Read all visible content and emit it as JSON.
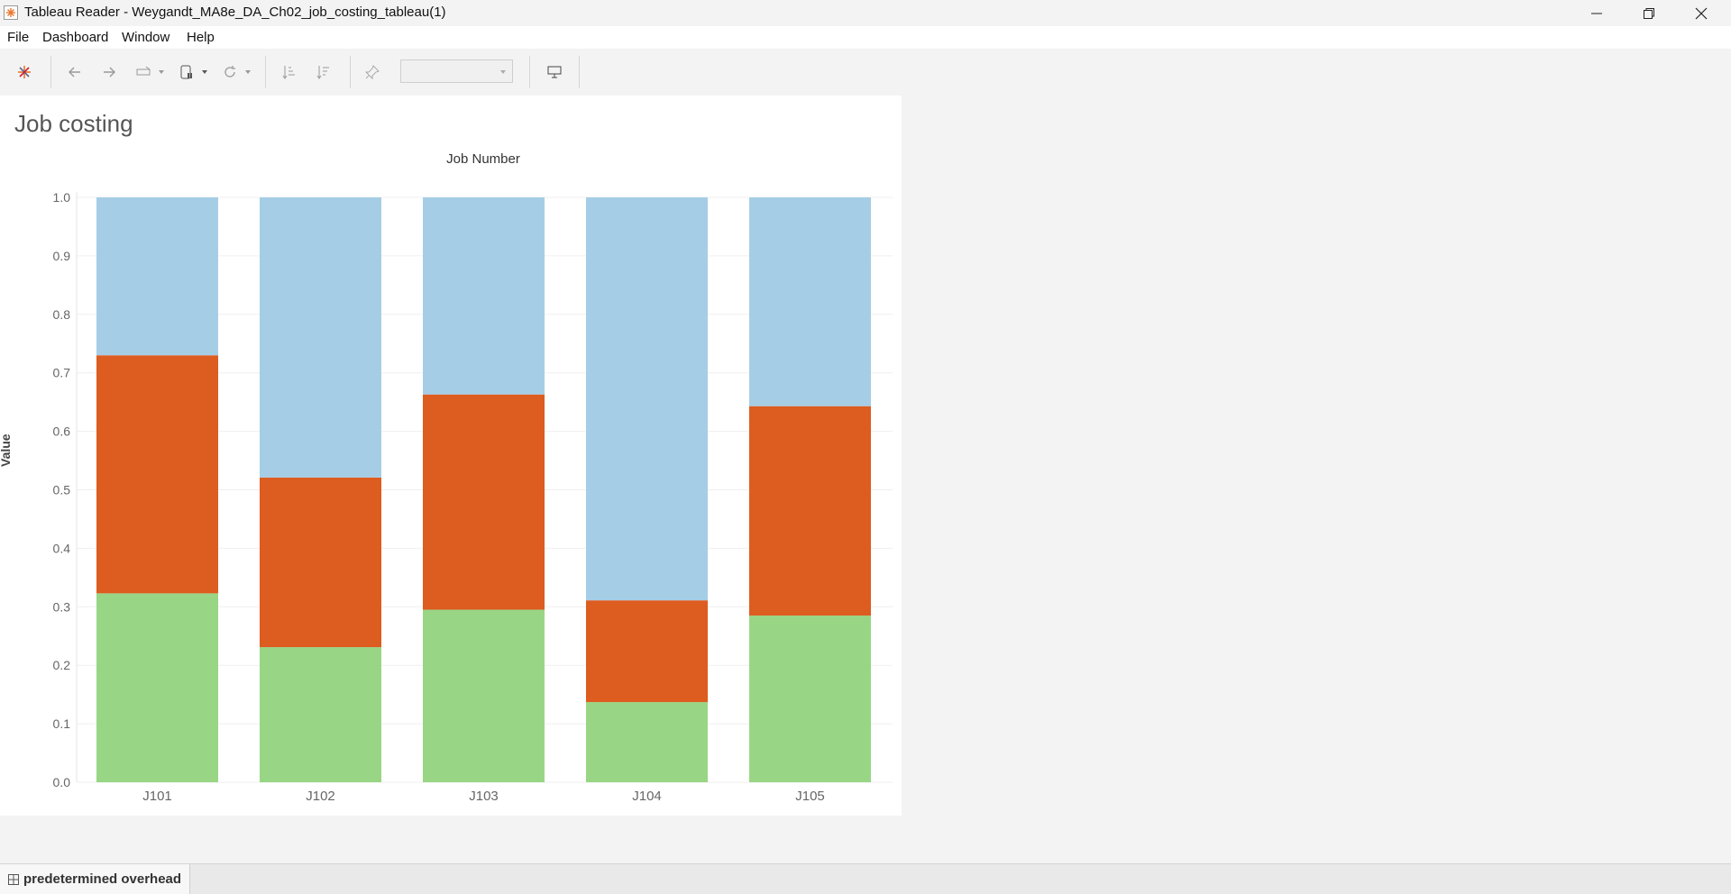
{
  "window": {
    "title": "Tableau Reader - Weygandt_MA8e_DA_Ch02_job_costing_tableau(1)"
  },
  "menu": {
    "items": [
      "File",
      "Dashboard",
      "Window",
      "Help"
    ]
  },
  "toolbar": {
    "icons": [
      "tableau-logo-icon",
      "back-icon",
      "forward-icon",
      "redo-icon",
      "pause-updates-icon",
      "refresh-icon",
      "sort-ascending-icon",
      "sort-descending-icon",
      "pin-icon",
      "presentation-mode-icon"
    ],
    "dropdown_value": ""
  },
  "dashboard": {
    "title": "Job costing"
  },
  "chart_data": {
    "type": "bar",
    "stacked": true,
    "column_header": "Job Number",
    "ylabel": "Value",
    "ylim": [
      0,
      1.0
    ],
    "yticks": [
      "0.0",
      "0.1",
      "0.2",
      "0.3",
      "0.4",
      "0.5",
      "0.6",
      "0.7",
      "0.8",
      "0.9",
      "1.0"
    ],
    "categories": [
      "J101",
      "J102",
      "J103",
      "J104",
      "J105"
    ],
    "grid": true,
    "series": [
      {
        "color": "#98d686",
        "values": [
          0.323,
          0.231,
          0.295,
          0.137,
          0.285
        ]
      },
      {
        "color": "#dd5c20",
        "values": [
          0.407,
          0.29,
          0.368,
          0.174,
          0.358
        ]
      },
      {
        "color": "#a6cde6",
        "values": [
          0.27,
          0.479,
          0.337,
          0.689,
          0.357
        ]
      }
    ]
  },
  "statusbar": {
    "sheet_tab": "predetermined overhead"
  }
}
